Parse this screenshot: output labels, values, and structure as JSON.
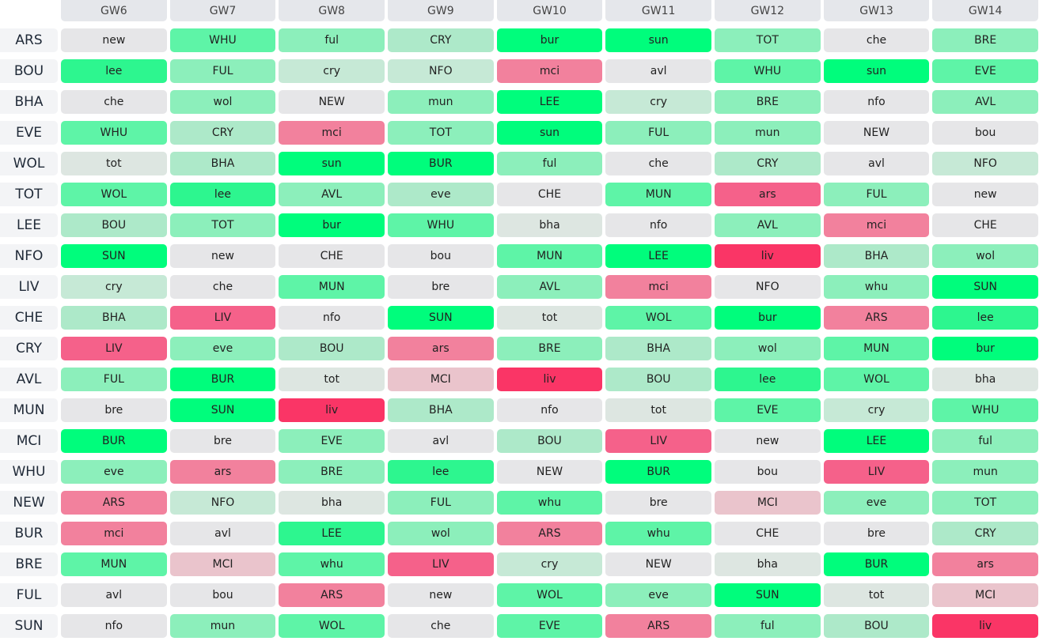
{
  "gameweeks": [
    "GW6",
    "GW7",
    "GW8",
    "GW9",
    "GW10",
    "GW11",
    "GW12",
    "GW13",
    "GW14"
  ],
  "palette": {
    "g5": "#00fd7c",
    "g4": "#2df68f",
    "g3": "#5ef4a7",
    "g2": "#8cefbb",
    "g1": "#ade9c9",
    "g0": "#c6e9d6",
    "nt": "#dde6e1",
    "n": "#e6e6e8",
    "p1": "#eac4cc",
    "p2": "#f2819d",
    "p3": "#f5618a",
    "p4": "#fa3566"
  },
  "rows": [
    {
      "team": "ARS",
      "fixtures": [
        {
          "opp": "new",
          "level": "n"
        },
        {
          "opp": "WHU",
          "level": "g3"
        },
        {
          "opp": "ful",
          "level": "g2"
        },
        {
          "opp": "CRY",
          "level": "g1"
        },
        {
          "opp": "bur",
          "level": "g5"
        },
        {
          "opp": "sun",
          "level": "g5"
        },
        {
          "opp": "TOT",
          "level": "g2"
        },
        {
          "opp": "che",
          "level": "n"
        },
        {
          "opp": "BRE",
          "level": "g2"
        }
      ]
    },
    {
      "team": "BOU",
      "fixtures": [
        {
          "opp": "lee",
          "level": "g4"
        },
        {
          "opp": "FUL",
          "level": "g2"
        },
        {
          "opp": "cry",
          "level": "g0"
        },
        {
          "opp": "NFO",
          "level": "g0"
        },
        {
          "opp": "mci",
          "level": "p2"
        },
        {
          "opp": "avl",
          "level": "n"
        },
        {
          "opp": "WHU",
          "level": "g3"
        },
        {
          "opp": "sun",
          "level": "g5"
        },
        {
          "opp": "EVE",
          "level": "g3"
        }
      ]
    },
    {
      "team": "BHA",
      "fixtures": [
        {
          "opp": "che",
          "level": "n"
        },
        {
          "opp": "wol",
          "level": "g2"
        },
        {
          "opp": "NEW",
          "level": "n"
        },
        {
          "opp": "mun",
          "level": "g2"
        },
        {
          "opp": "LEE",
          "level": "g5"
        },
        {
          "opp": "cry",
          "level": "g0"
        },
        {
          "opp": "BRE",
          "level": "g2"
        },
        {
          "opp": "nfo",
          "level": "n"
        },
        {
          "opp": "AVL",
          "level": "g2"
        }
      ]
    },
    {
      "team": "EVE",
      "fixtures": [
        {
          "opp": "WHU",
          "level": "g3"
        },
        {
          "opp": "CRY",
          "level": "g1"
        },
        {
          "opp": "mci",
          "level": "p2"
        },
        {
          "opp": "TOT",
          "level": "g2"
        },
        {
          "opp": "sun",
          "level": "g5"
        },
        {
          "opp": "FUL",
          "level": "g2"
        },
        {
          "opp": "mun",
          "level": "g2"
        },
        {
          "opp": "NEW",
          "level": "n"
        },
        {
          "opp": "bou",
          "level": "n"
        }
      ]
    },
    {
      "team": "WOL",
      "fixtures": [
        {
          "opp": "tot",
          "level": "nt"
        },
        {
          "opp": "BHA",
          "level": "g1"
        },
        {
          "opp": "sun",
          "level": "g5"
        },
        {
          "opp": "BUR",
          "level": "g5"
        },
        {
          "opp": "ful",
          "level": "g2"
        },
        {
          "opp": "che",
          "level": "n"
        },
        {
          "opp": "CRY",
          "level": "g1"
        },
        {
          "opp": "avl",
          "level": "n"
        },
        {
          "opp": "NFO",
          "level": "g0"
        }
      ]
    },
    {
      "team": "TOT",
      "fixtures": [
        {
          "opp": "WOL",
          "level": "g3"
        },
        {
          "opp": "lee",
          "level": "g4"
        },
        {
          "opp": "AVL",
          "level": "g2"
        },
        {
          "opp": "eve",
          "level": "g1"
        },
        {
          "opp": "CHE",
          "level": "n"
        },
        {
          "opp": "MUN",
          "level": "g3"
        },
        {
          "opp": "ars",
          "level": "p3"
        },
        {
          "opp": "FUL",
          "level": "g2"
        },
        {
          "opp": "new",
          "level": "n"
        }
      ]
    },
    {
      "team": "LEE",
      "fixtures": [
        {
          "opp": "BOU",
          "level": "g1"
        },
        {
          "opp": "TOT",
          "level": "g2"
        },
        {
          "opp": "bur",
          "level": "g5"
        },
        {
          "opp": "WHU",
          "level": "g3"
        },
        {
          "opp": "bha",
          "level": "nt"
        },
        {
          "opp": "nfo",
          "level": "n"
        },
        {
          "opp": "AVL",
          "level": "g2"
        },
        {
          "opp": "mci",
          "level": "p2"
        },
        {
          "opp": "CHE",
          "level": "n"
        }
      ]
    },
    {
      "team": "NFO",
      "fixtures": [
        {
          "opp": "SUN",
          "level": "g5"
        },
        {
          "opp": "new",
          "level": "n"
        },
        {
          "opp": "CHE",
          "level": "n"
        },
        {
          "opp": "bou",
          "level": "n"
        },
        {
          "opp": "MUN",
          "level": "g3"
        },
        {
          "opp": "LEE",
          "level": "g5"
        },
        {
          "opp": "liv",
          "level": "p4"
        },
        {
          "opp": "BHA",
          "level": "g1"
        },
        {
          "opp": "wol",
          "level": "g2"
        }
      ]
    },
    {
      "team": "LIV",
      "fixtures": [
        {
          "opp": "cry",
          "level": "g0"
        },
        {
          "opp": "che",
          "level": "n"
        },
        {
          "opp": "MUN",
          "level": "g3"
        },
        {
          "opp": "bre",
          "level": "n"
        },
        {
          "opp": "AVL",
          "level": "g2"
        },
        {
          "opp": "mci",
          "level": "p2"
        },
        {
          "opp": "NFO",
          "level": "n"
        },
        {
          "opp": "whu",
          "level": "g2"
        },
        {
          "opp": "SUN",
          "level": "g5"
        }
      ]
    },
    {
      "team": "CHE",
      "fixtures": [
        {
          "opp": "BHA",
          "level": "g1"
        },
        {
          "opp": "LIV",
          "level": "p3"
        },
        {
          "opp": "nfo",
          "level": "n"
        },
        {
          "opp": "SUN",
          "level": "g5"
        },
        {
          "opp": "tot",
          "level": "nt"
        },
        {
          "opp": "WOL",
          "level": "g3"
        },
        {
          "opp": "bur",
          "level": "g5"
        },
        {
          "opp": "ARS",
          "level": "p2"
        },
        {
          "opp": "lee",
          "level": "g4"
        }
      ]
    },
    {
      "team": "CRY",
      "fixtures": [
        {
          "opp": "LIV",
          "level": "p3"
        },
        {
          "opp": "eve",
          "level": "g2"
        },
        {
          "opp": "BOU",
          "level": "g1"
        },
        {
          "opp": "ars",
          "level": "p2"
        },
        {
          "opp": "BRE",
          "level": "g2"
        },
        {
          "opp": "BHA",
          "level": "g1"
        },
        {
          "opp": "wol",
          "level": "g2"
        },
        {
          "opp": "MUN",
          "level": "g3"
        },
        {
          "opp": "bur",
          "level": "g5"
        }
      ]
    },
    {
      "team": "AVL",
      "fixtures": [
        {
          "opp": "FUL",
          "level": "g2"
        },
        {
          "opp": "BUR",
          "level": "g5"
        },
        {
          "opp": "tot",
          "level": "nt"
        },
        {
          "opp": "MCI",
          "level": "p1"
        },
        {
          "opp": "liv",
          "level": "p4"
        },
        {
          "opp": "BOU",
          "level": "g1"
        },
        {
          "opp": "lee",
          "level": "g4"
        },
        {
          "opp": "WOL",
          "level": "g3"
        },
        {
          "opp": "bha",
          "level": "nt"
        }
      ]
    },
    {
      "team": "MUN",
      "fixtures": [
        {
          "opp": "bre",
          "level": "n"
        },
        {
          "opp": "SUN",
          "level": "g5"
        },
        {
          "opp": "liv",
          "level": "p4"
        },
        {
          "opp": "BHA",
          "level": "g1"
        },
        {
          "opp": "nfo",
          "level": "n"
        },
        {
          "opp": "tot",
          "level": "nt"
        },
        {
          "opp": "EVE",
          "level": "g3"
        },
        {
          "opp": "cry",
          "level": "g0"
        },
        {
          "opp": "WHU",
          "level": "g3"
        }
      ]
    },
    {
      "team": "MCI",
      "fixtures": [
        {
          "opp": "BUR",
          "level": "g5"
        },
        {
          "opp": "bre",
          "level": "n"
        },
        {
          "opp": "EVE",
          "level": "g2"
        },
        {
          "opp": "avl",
          "level": "n"
        },
        {
          "opp": "BOU",
          "level": "g1"
        },
        {
          "opp": "LIV",
          "level": "p3"
        },
        {
          "opp": "new",
          "level": "n"
        },
        {
          "opp": "LEE",
          "level": "g5"
        },
        {
          "opp": "ful",
          "level": "g2"
        }
      ]
    },
    {
      "team": "WHU",
      "fixtures": [
        {
          "opp": "eve",
          "level": "g2"
        },
        {
          "opp": "ars",
          "level": "p2"
        },
        {
          "opp": "BRE",
          "level": "g2"
        },
        {
          "opp": "lee",
          "level": "g4"
        },
        {
          "opp": "NEW",
          "level": "n"
        },
        {
          "opp": "BUR",
          "level": "g5"
        },
        {
          "opp": "bou",
          "level": "n"
        },
        {
          "opp": "LIV",
          "level": "p3"
        },
        {
          "opp": "mun",
          "level": "g2"
        }
      ]
    },
    {
      "team": "NEW",
      "fixtures": [
        {
          "opp": "ARS",
          "level": "p2"
        },
        {
          "opp": "NFO",
          "level": "g0"
        },
        {
          "opp": "bha",
          "level": "nt"
        },
        {
          "opp": "FUL",
          "level": "g2"
        },
        {
          "opp": "whu",
          "level": "g3"
        },
        {
          "opp": "bre",
          "level": "n"
        },
        {
          "opp": "MCI",
          "level": "p1"
        },
        {
          "opp": "eve",
          "level": "g2"
        },
        {
          "opp": "TOT",
          "level": "g2"
        }
      ]
    },
    {
      "team": "BUR",
      "fixtures": [
        {
          "opp": "mci",
          "level": "p2"
        },
        {
          "opp": "avl",
          "level": "n"
        },
        {
          "opp": "LEE",
          "level": "g4"
        },
        {
          "opp": "wol",
          "level": "g2"
        },
        {
          "opp": "ARS",
          "level": "p2"
        },
        {
          "opp": "whu",
          "level": "g3"
        },
        {
          "opp": "CHE",
          "level": "n"
        },
        {
          "opp": "bre",
          "level": "n"
        },
        {
          "opp": "CRY",
          "level": "g1"
        }
      ]
    },
    {
      "team": "BRE",
      "fixtures": [
        {
          "opp": "MUN",
          "level": "g3"
        },
        {
          "opp": "MCI",
          "level": "p1"
        },
        {
          "opp": "whu",
          "level": "g3"
        },
        {
          "opp": "LIV",
          "level": "p3"
        },
        {
          "opp": "cry",
          "level": "g0"
        },
        {
          "opp": "NEW",
          "level": "n"
        },
        {
          "opp": "bha",
          "level": "nt"
        },
        {
          "opp": "BUR",
          "level": "g5"
        },
        {
          "opp": "ars",
          "level": "p2"
        }
      ]
    },
    {
      "team": "FUL",
      "fixtures": [
        {
          "opp": "avl",
          "level": "n"
        },
        {
          "opp": "bou",
          "level": "n"
        },
        {
          "opp": "ARS",
          "level": "p2"
        },
        {
          "opp": "new",
          "level": "n"
        },
        {
          "opp": "WOL",
          "level": "g3"
        },
        {
          "opp": "eve",
          "level": "g2"
        },
        {
          "opp": "SUN",
          "level": "g5"
        },
        {
          "opp": "tot",
          "level": "nt"
        },
        {
          "opp": "MCI",
          "level": "p1"
        }
      ]
    },
    {
      "team": "SUN",
      "fixtures": [
        {
          "opp": "nfo",
          "level": "n"
        },
        {
          "opp": "mun",
          "level": "g2"
        },
        {
          "opp": "WOL",
          "level": "g3"
        },
        {
          "opp": "che",
          "level": "n"
        },
        {
          "opp": "EVE",
          "level": "g3"
        },
        {
          "opp": "ARS",
          "level": "p2"
        },
        {
          "opp": "ful",
          "level": "g2"
        },
        {
          "opp": "BOU",
          "level": "g1"
        },
        {
          "opp": "liv",
          "level": "p4"
        }
      ]
    }
  ]
}
